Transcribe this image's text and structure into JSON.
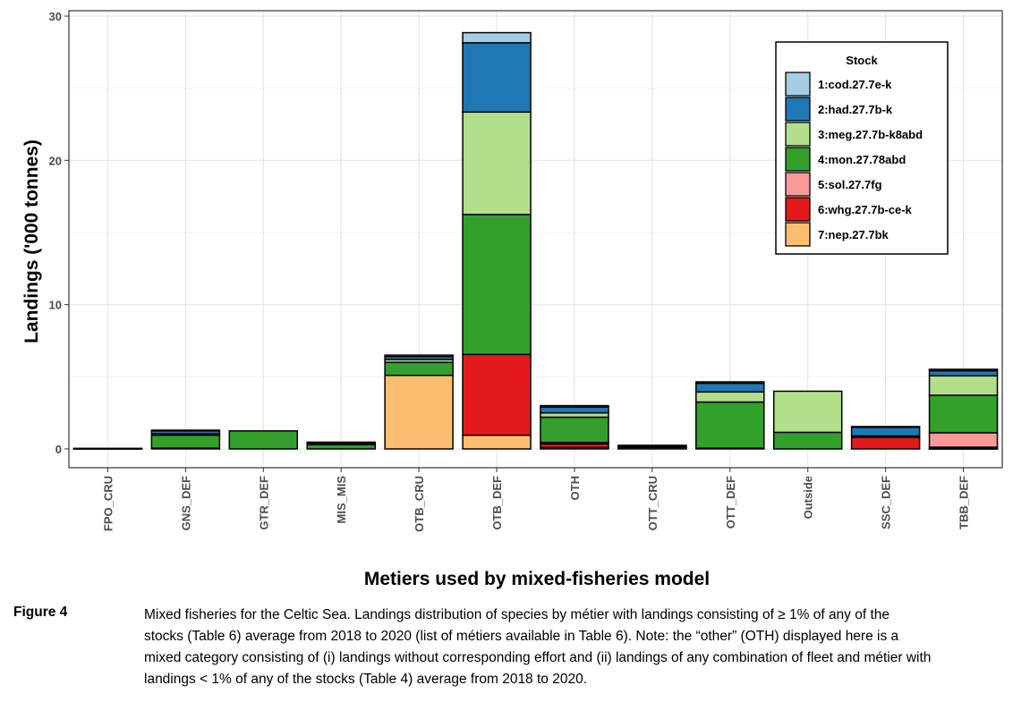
{
  "chart_data": {
    "type": "bar",
    "stacked": true,
    "xlabel": "Metiers used by mixed-fisheries model",
    "ylabel": "Landings ('000 tonnes)",
    "ylim": [
      0,
      30
    ],
    "yticks": [
      0,
      10,
      20,
      30
    ],
    "grid": true,
    "legend_position": "top-right",
    "legend_title": "Stock",
    "categories": [
      "FPO_CRU",
      "GNS_DEF",
      "GTR_DEF",
      "MIS_MIS",
      "OTB_CRU",
      "OTB_DEF",
      "OTH",
      "OTT_CRU",
      "OTT_DEF",
      "Outside",
      "SSC_DEF",
      "TBB_DEF"
    ],
    "series": [
      {
        "name": "7:nep.27.7bk",
        "color": "#fdbf6f",
        "values": [
          0.02,
          0,
          0,
          0,
          5.1,
          0.95,
          0.1,
          0.1,
          0,
          0,
          0,
          0.02
        ]
      },
      {
        "name": "6:whg.27.7b-ce-k",
        "color": "#e31a1c",
        "values": [
          0,
          0.05,
          0,
          0,
          0,
          5.6,
          0.25,
          0.05,
          0.05,
          0,
          0.8,
          0.1
        ]
      },
      {
        "name": "5:sol.27.7fg",
        "color": "#fb9a99",
        "values": [
          0,
          0,
          0,
          0,
          0,
          0,
          0.1,
          0,
          0,
          0,
          0,
          1.0
        ]
      },
      {
        "name": "4:mon.27.78abd",
        "color": "#33a02c",
        "values": [
          0.02,
          0.9,
          1.25,
          0.3,
          0.9,
          9.7,
          1.75,
          0.05,
          3.2,
          1.15,
          0.05,
          2.6
        ]
      },
      {
        "name": "3:meg.27.7b-k8abd",
        "color": "#b2df8a",
        "values": [
          0,
          0.1,
          0,
          0.05,
          0.2,
          7.1,
          0.3,
          0,
          0.7,
          2.85,
          0.05,
          1.35
        ]
      },
      {
        "name": "2:had.27.7b-k",
        "color": "#1f78b4",
        "values": [
          0,
          0.2,
          0,
          0.1,
          0.2,
          4.8,
          0.4,
          0.05,
          0.6,
          0,
          0.6,
          0.35
        ]
      },
      {
        "name": "1:cod.27.7e-k",
        "color": "#a6cee3",
        "values": [
          0,
          0.05,
          0,
          0.02,
          0.1,
          0.7,
          0.1,
          0,
          0.1,
          0,
          0.05,
          0.1
        ]
      }
    ]
  },
  "caption": {
    "label": "Figure 4",
    "text": "Mixed fisheries for the Celtic Sea. Landings distribution of species by métier with landings consisting of ≥ 1% of any of the stocks (Table 6) average from 2018 to 2020 (list of métiers available in Table 6). Note: the “other” (OTH) displayed here is a mixed category consisting of (i) landings without corresponding effort and (ii) landings of any combination of fleet and métier with landings < 1% of any of the stocks (Table 4) average from 2018 to 2020."
  }
}
